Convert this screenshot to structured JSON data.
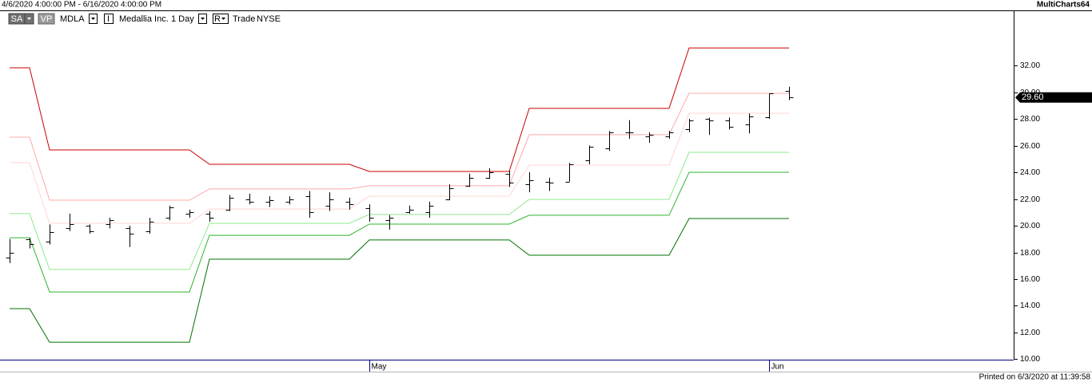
{
  "chart_data": {
    "type": "ohlc",
    "date_range": "4/6/2020 4:00:00 PM - 6/16/2020 4:00:00 PM",
    "app_name": "MultiCharts64",
    "buttons": [
      "SA",
      "VP"
    ],
    "symbol": "MDLA",
    "icon_letters": [
      "I",
      "R"
    ],
    "description": "Medallia Inc.",
    "resolution": "1 Day",
    "data_type": "Trade",
    "exchange": "NYSE",
    "printed": "Printed on 6/3/2020 at 11:39:58",
    "categories": [
      null,
      null,
      null,
      null,
      null,
      null,
      null,
      null,
      null,
      null,
      null,
      null,
      null,
      null,
      null,
      null,
      null,
      null,
      "May",
      null,
      null,
      null,
      null,
      null,
      null,
      null,
      null,
      null,
      null,
      null,
      null,
      null,
      null,
      null,
      null,
      null,
      null,
      null,
      "Jun",
      null
    ],
    "open": [
      17.6,
      19.0,
      18.8,
      19.8,
      20.0,
      20.1,
      19.8,
      19.6,
      20.6,
      20.9,
      20.9,
      21.2,
      22.0,
      21.8,
      21.8,
      22.2,
      21.5,
      21.8,
      21.3,
      20.4,
      21.0,
      21.0,
      22.0,
      23.0,
      23.6,
      23.9,
      23.1,
      23.3,
      23.3,
      24.9,
      25.8,
      27.0,
      26.7,
      26.7,
      27.2,
      28.0,
      27.9,
      27.6,
      28.1,
      30.1
    ],
    "high": [
      19.0,
      19.1,
      20.1,
      20.9,
      20.1,
      20.6,
      20.0,
      20.6,
      21.5,
      21.2,
      21.1,
      22.3,
      22.4,
      22.2,
      22.2,
      22.6,
      22.5,
      22.1,
      21.6,
      20.8,
      21.5,
      21.8,
      23.1,
      23.9,
      24.3,
      24.1,
      24.0,
      23.6,
      24.7,
      26.0,
      27.1,
      27.9,
      27.0,
      27.1,
      28.0,
      28.1,
      28.1,
      28.4,
      29.9,
      30.4
    ],
    "low": [
      17.2,
      18.3,
      18.6,
      19.6,
      19.4,
      19.8,
      18.4,
      19.4,
      20.4,
      20.6,
      20.3,
      21.1,
      21.6,
      21.4,
      21.6,
      20.6,
      21.1,
      21.2,
      20.3,
      19.7,
      20.9,
      20.6,
      21.9,
      22.9,
      23.5,
      22.9,
      22.5,
      22.6,
      23.3,
      24.6,
      25.6,
      26.5,
      26.2,
      26.5,
      27.0,
      26.8,
      27.2,
      26.9,
      28.0,
      29.4
    ],
    "close": [
      18.0,
      18.6,
      19.5,
      20.1,
      19.6,
      20.4,
      19.4,
      20.3,
      21.4,
      21.0,
      20.6,
      22.1,
      21.8,
      21.9,
      22.0,
      21.0,
      22.0,
      21.6,
      20.6,
      20.6,
      21.2,
      21.5,
      22.8,
      23.6,
      24.0,
      23.2,
      23.4,
      23.2,
      24.6,
      25.9,
      27.0,
      27.0,
      26.8,
      27.0,
      27.9,
      27.9,
      27.4,
      28.2,
      29.9,
      29.6
    ],
    "color": "#000000",
    "bands": [
      {
        "color": "#c80000",
        "values": [
          31.82,
          31.82,
          25.67,
          25.67,
          25.67,
          25.67,
          25.67,
          25.67,
          25.67,
          25.67,
          24.6,
          24.6,
          24.6,
          24.6,
          24.6,
          24.6,
          24.6,
          24.6,
          24.06,
          24.06,
          24.06,
          24.06,
          24.06,
          24.06,
          24.06,
          24.06,
          28.78,
          28.78,
          28.78,
          28.78,
          28.78,
          28.78,
          28.78,
          28.78,
          33.31,
          33.31,
          33.31,
          33.31,
          33.31,
          33.31
        ]
      },
      {
        "color": "#ffa8a8",
        "values": [
          26.63,
          26.63,
          21.91,
          21.91,
          21.91,
          21.91,
          21.91,
          21.91,
          21.91,
          21.91,
          22.75,
          22.75,
          22.75,
          22.75,
          22.75,
          22.75,
          22.75,
          22.75,
          22.99,
          22.99,
          22.99,
          22.99,
          22.99,
          22.99,
          22.99,
          22.99,
          26.81,
          26.81,
          26.81,
          26.81,
          26.81,
          26.81,
          26.81,
          26.81,
          29.91,
          29.91,
          29.91,
          29.91,
          29.91,
          29.91
        ]
      },
      {
        "color": "#ffd4d4",
        "values": [
          24.72,
          24.72,
          20.18,
          20.18,
          20.18,
          20.18,
          20.18,
          20.18,
          20.18,
          20.18,
          21.25,
          21.25,
          21.25,
          21.25,
          21.25,
          21.25,
          21.25,
          21.25,
          22.21,
          22.21,
          22.21,
          22.21,
          22.21,
          22.21,
          22.21,
          22.21,
          24.54,
          24.54,
          24.54,
          24.54,
          24.54,
          24.54,
          24.54,
          24.54,
          28.42,
          28.42,
          28.42,
          28.42,
          28.42,
          28.42
        ]
      },
      {
        "color": "#8fe88f",
        "values": [
          20.9,
          20.9,
          16.72,
          16.72,
          16.72,
          16.72,
          16.72,
          16.72,
          16.72,
          16.72,
          20.18,
          20.18,
          20.18,
          20.18,
          20.18,
          20.18,
          20.18,
          20.18,
          20.84,
          20.84,
          20.84,
          20.84,
          20.84,
          20.84,
          20.84,
          20.84,
          21.97,
          21.97,
          21.97,
          21.97,
          21.97,
          21.97,
          21.97,
          21.97,
          25.49,
          25.49,
          25.49,
          25.49,
          25.49,
          25.49
        ]
      },
      {
        "color": "#2fb52f",
        "values": [
          19.1,
          19.1,
          15.04,
          15.04,
          15.04,
          15.04,
          15.04,
          15.04,
          15.04,
          15.04,
          19.28,
          19.28,
          19.28,
          19.28,
          19.28,
          19.28,
          19.28,
          19.28,
          20.12,
          20.12,
          20.12,
          20.12,
          20.12,
          20.12,
          20.12,
          20.12,
          20.78,
          20.78,
          20.78,
          20.78,
          20.78,
          20.78,
          20.78,
          20.78,
          24.0,
          24.0,
          24.0,
          24.0,
          24.0,
          24.0
        ]
      },
      {
        "color": "#007000",
        "values": [
          13.79,
          13.79,
          11.28,
          11.28,
          11.28,
          11.28,
          11.28,
          11.28,
          11.28,
          11.28,
          17.49,
          17.49,
          17.49,
          17.49,
          17.49,
          17.49,
          17.49,
          17.49,
          18.93,
          18.93,
          18.93,
          18.93,
          18.93,
          18.93,
          18.93,
          18.93,
          17.79,
          17.79,
          17.79,
          17.79,
          17.79,
          17.79,
          17.79,
          17.79,
          20.54,
          20.54,
          20.54,
          20.54,
          20.54,
          20.54
        ]
      }
    ],
    "last_price": {
      "value": 29.6,
      "label": "29.60"
    },
    "ylim": [
      9.97,
      36.12
    ],
    "yticks": [
      {
        "value": 10,
        "label": "10.00"
      },
      {
        "value": 12,
        "label": "12.00"
      },
      {
        "value": 14,
        "label": "14.00"
      },
      {
        "value": 16,
        "label": "16.00"
      },
      {
        "value": 18,
        "label": "18.00"
      },
      {
        "value": 20,
        "label": "20.00"
      },
      {
        "value": 22,
        "label": "22.00"
      },
      {
        "value": 24,
        "label": "24.00"
      },
      {
        "value": 26,
        "label": "26.00"
      },
      {
        "value": 28,
        "label": "28.00"
      },
      {
        "value": 30,
        "label": "30.00"
      },
      {
        "value": 32,
        "label": "32.00"
      }
    ]
  }
}
